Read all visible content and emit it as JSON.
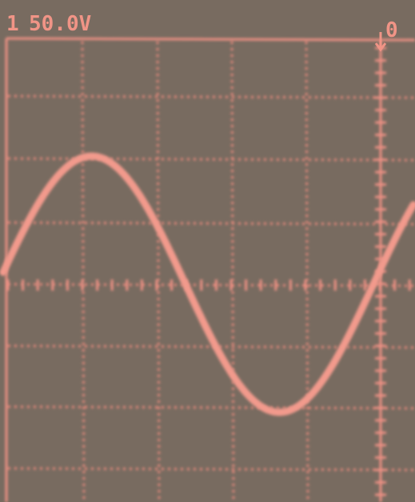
{
  "screen": {
    "channel": "1",
    "scale": "50.0V",
    "trigger_marker": "0"
  }
}
